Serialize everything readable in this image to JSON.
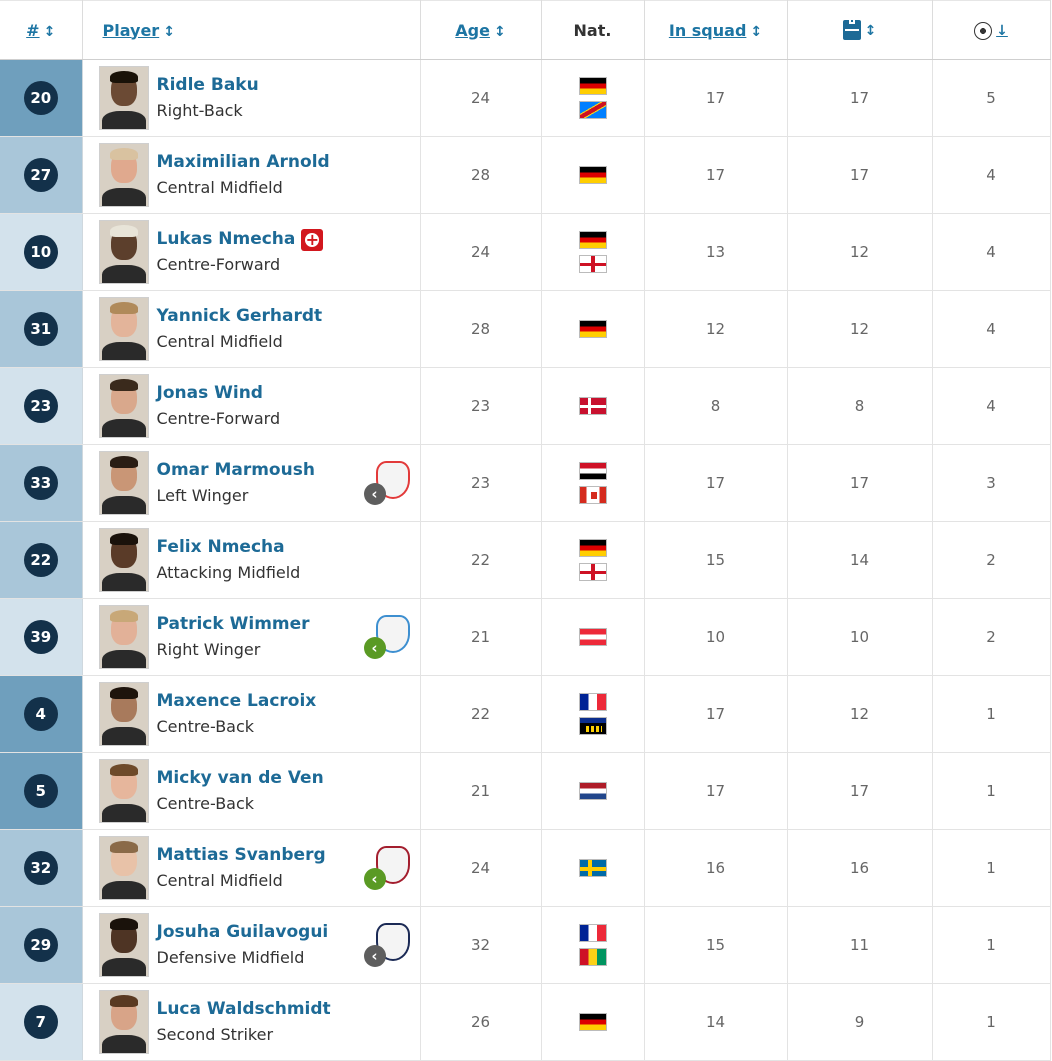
{
  "header": {
    "number": "#",
    "player": "Player",
    "age": "Age",
    "nat": "Nat.",
    "in_squad": "In squad",
    "appearances_icon": "pitch-icon",
    "goals_icon": "ball-icon",
    "sort_glyph": "↕",
    "sort_desc_glyph": "↓"
  },
  "colors": {
    "link": "#1d6a96",
    "badge": "#13314a",
    "row_light": "#d3e2ec",
    "row_dark": "#6f9fbd",
    "loan_grey": "#5e5e5e",
    "loan_green": "#5a9a24"
  },
  "players": [
    {
      "number": "20",
      "name": "Ridle Baku",
      "position": "Right-Back",
      "age": "24",
      "nats": [
        "de",
        "cd"
      ],
      "in_squad": "17",
      "apps": "17",
      "goals": "5",
      "num_bg": "dark",
      "skin": "#6b4a34",
      "hair": "#1a1208"
    },
    {
      "number": "27",
      "name": "Maximilian Arnold",
      "position": "Central Midfield",
      "age": "28",
      "nats": [
        "de"
      ],
      "in_squad": "17",
      "apps": "17",
      "goals": "4",
      "num_bg": "light",
      "skin": "#e0a98e",
      "hair": "#d9c2a0"
    },
    {
      "number": "10",
      "name": "Lukas Nmecha",
      "position": "Centre-Forward",
      "age": "24",
      "nats": [
        "de",
        "en"
      ],
      "in_squad": "13",
      "apps": "12",
      "goals": "4",
      "num_bg": "lighter",
      "skin": "#5c3f2c",
      "hair": "#e8e4d8",
      "injury": true
    },
    {
      "number": "31",
      "name": "Yannick Gerhardt",
      "position": "Central Midfield",
      "age": "28",
      "nats": [
        "de"
      ],
      "in_squad": "12",
      "apps": "12",
      "goals": "4",
      "num_bg": "light",
      "skin": "#e3b49a",
      "hair": "#b08a5a"
    },
    {
      "number": "23",
      "name": "Jonas Wind",
      "position": "Centre-Forward",
      "age": "23",
      "nats": [
        "dk"
      ],
      "in_squad": "8",
      "apps": "8",
      "goals": "4",
      "num_bg": "lighter",
      "skin": "#d9a88c",
      "hair": "#3a2a1c"
    },
    {
      "number": "33",
      "name": "Omar Marmoush",
      "position": "Left Winger",
      "age": "23",
      "nats": [
        "eg",
        "ca"
      ],
      "in_squad": "17",
      "apps": "17",
      "goals": "3",
      "num_bg": "light",
      "skin": "#c99676",
      "hair": "#2a1d14",
      "loan": "grey",
      "crest": "#e23a3a"
    },
    {
      "number": "22",
      "name": "Felix Nmecha",
      "position": "Attacking Midfield",
      "age": "22",
      "nats": [
        "de",
        "en"
      ],
      "in_squad": "15",
      "apps": "14",
      "goals": "2",
      "num_bg": "light",
      "skin": "#5a3b28",
      "hair": "#1a120b"
    },
    {
      "number": "39",
      "name": "Patrick Wimmer",
      "position": "Right Winger",
      "age": "21",
      "nats": [
        "at"
      ],
      "in_squad": "10",
      "apps": "10",
      "goals": "2",
      "num_bg": "lighter",
      "skin": "#e2b198",
      "hair": "#c8a878",
      "loan": "green",
      "crest": "#3d8fd0"
    },
    {
      "number": "4",
      "name": "Maxence Lacroix",
      "position": "Centre-Back",
      "age": "22",
      "nats": [
        "fr",
        "gp"
      ],
      "in_squad": "17",
      "apps": "12",
      "goals": "1",
      "num_bg": "dark",
      "skin": "#a87a5c",
      "hair": "#1e140c"
    },
    {
      "number": "5",
      "name": "Micky van de Ven",
      "position": "Centre-Back",
      "age": "21",
      "nats": [
        "nl"
      ],
      "in_squad": "17",
      "apps": "17",
      "goals": "1",
      "num_bg": "dark",
      "skin": "#e6b69c",
      "hair": "#6e4a2a"
    },
    {
      "number": "32",
      "name": "Mattias Svanberg",
      "position": "Central Midfield",
      "age": "24",
      "nats": [
        "se"
      ],
      "in_squad": "16",
      "apps": "16",
      "goals": "1",
      "num_bg": "light",
      "skin": "#e8c2a8",
      "hair": "#8a6a48",
      "loan": "green",
      "crest": "#a31e2e"
    },
    {
      "number": "29",
      "name": "Josuha Guilavogui",
      "position": "Defensive Midfield",
      "age": "32",
      "nats": [
        "fr",
        "gn"
      ],
      "in_squad": "15",
      "apps": "11",
      "goals": "1",
      "num_bg": "light",
      "skin": "#4e3424",
      "hair": "#1a120b",
      "loan": "grey",
      "crest": "#1b2a55"
    },
    {
      "number": "7",
      "name": "Luca Waldschmidt",
      "position": "Second Striker",
      "age": "26",
      "nats": [
        "de"
      ],
      "in_squad": "14",
      "apps": "9",
      "goals": "1",
      "num_bg": "lighter",
      "skin": "#d8a488",
      "hair": "#5a3a22"
    }
  ]
}
